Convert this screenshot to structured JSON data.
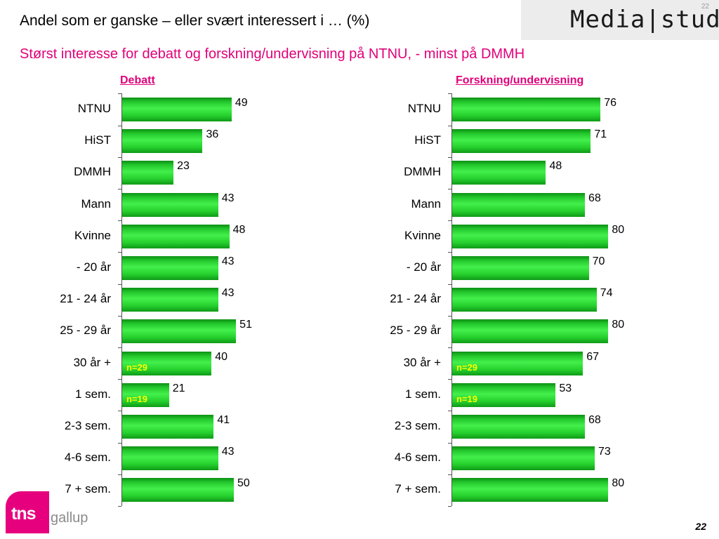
{
  "header": {
    "title": "Andel som er ganske – eller svært interessert i … (%)",
    "subtitle": "Størst interesse for debatt og forskning/undervisning på NTNU, - minst på DMMH"
  },
  "logo": {
    "text": "Media|stud",
    "slide_number": "22"
  },
  "footer": {
    "brand_mark": "tns",
    "brand_name": "gallup",
    "page_number": "22"
  },
  "colors": {
    "accent": "#e0007a",
    "bar": "#2fdc37",
    "note": "#ffff00"
  },
  "chart_data": [
    {
      "type": "bar",
      "orientation": "horizontal",
      "title": "Debatt",
      "categories": [
        "NTNU",
        "HiST",
        "DMMH",
        "Mann",
        "Kvinne",
        "- 20 år",
        "21 - 24 år",
        "25 - 29 år",
        "30 år +",
        "1 sem.",
        "2-3 sem.",
        "4-6 sem.",
        "7 + sem."
      ],
      "values": [
        49,
        36,
        23,
        43,
        48,
        43,
        43,
        51,
        40,
        21,
        41,
        43,
        50
      ],
      "annotations": [
        {
          "category": "30 år +",
          "text": "n=29"
        },
        {
          "category": "1 sem.",
          "text": "n=19"
        }
      ],
      "xlim": [
        0,
        100
      ],
      "grid": false,
      "legend": "none"
    },
    {
      "type": "bar",
      "orientation": "horizontal",
      "title": "Forskning/undervisning",
      "categories": [
        "NTNU",
        "HiST",
        "DMMH",
        "Mann",
        "Kvinne",
        "- 20 år",
        "21 - 24 år",
        "25 - 29 år",
        "30 år +",
        "1 sem.",
        "2-3 sem.",
        "4-6 sem.",
        "7 + sem."
      ],
      "values": [
        76,
        71,
        48,
        68,
        80,
        70,
        74,
        80,
        67,
        53,
        68,
        73,
        80
      ],
      "annotations": [
        {
          "category": "30 år +",
          "text": "n=29"
        },
        {
          "category": "1 sem.",
          "text": "n=19"
        }
      ],
      "xlim": [
        0,
        100
      ],
      "grid": false,
      "legend": "none"
    }
  ]
}
